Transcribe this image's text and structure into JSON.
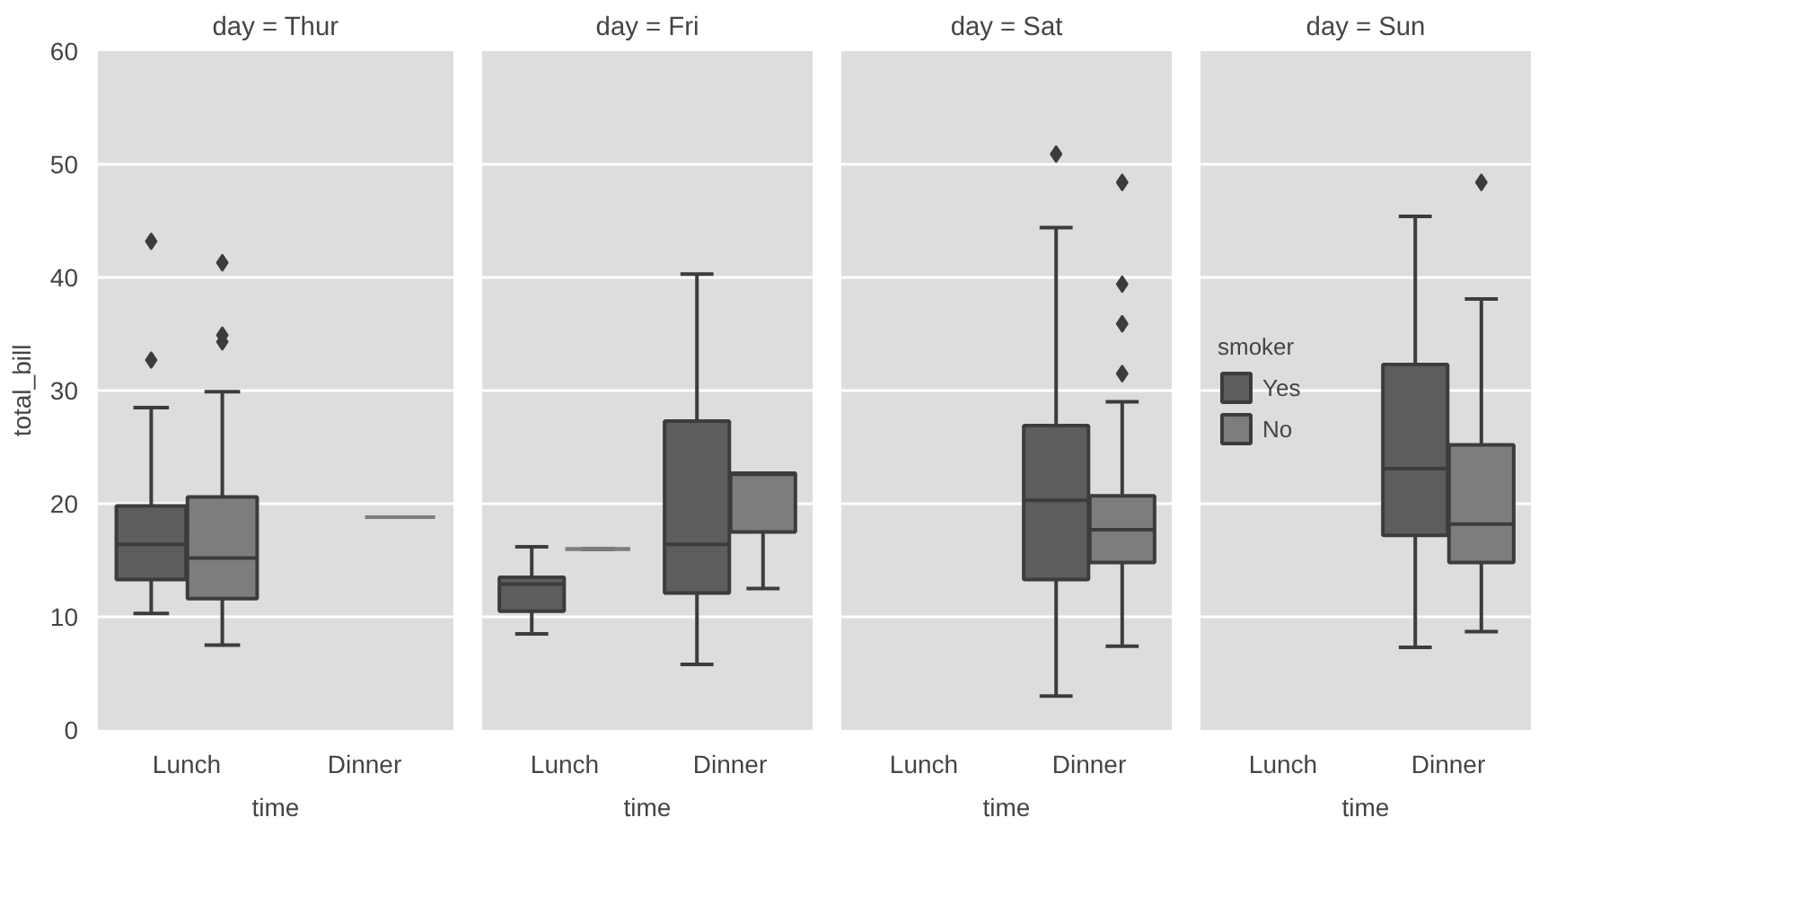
{
  "chart_data": [
    {
      "type": "box",
      "title": "day = Thur",
      "xlabel": "time",
      "ylabel": "total_bill",
      "categories": [
        "Lunch",
        "Dinner"
      ],
      "ylim": [
        0,
        60
      ],
      "yticks": [
        0,
        10,
        20,
        30,
        40,
        50,
        60
      ],
      "grid": "y",
      "legend": false,
      "series": [
        {
          "color": "#5d5d5d",
          "boxes": [
            {
              "low": 10.3,
              "q1": 13.3,
              "median": 16.4,
              "q3": 19.8,
              "high": 28.5,
              "outliers": [
                32.7,
                43.2
              ]
            },
            null
          ]
        },
        {
          "color": "#7d7d7d",
          "boxes": [
            {
              "low": 7.5,
              "q1": 11.6,
              "median": 15.2,
              "q3": 20.6,
              "high": 29.9,
              "outliers": [
                34.3,
                34.9,
                41.3
              ]
            },
            {
              "low": 18.8,
              "q1": 18.8,
              "median": 18.8,
              "q3": 18.8,
              "high": 18.8
            }
          ]
        }
      ]
    },
    {
      "type": "box",
      "title": "day = Fri",
      "xlabel": "time",
      "categories": [
        "Lunch",
        "Dinner"
      ],
      "ylim": [
        0,
        60
      ],
      "yticks": [
        0,
        10,
        20,
        30,
        40,
        50,
        60
      ],
      "grid": "y",
      "legend": false,
      "tick_labels": "x",
      "series": [
        {
          "color": "#5d5d5d",
          "boxes": [
            {
              "low": 8.5,
              "q1": 10.5,
              "median": 12.9,
              "q3": 13.5,
              "high": 16.2
            },
            {
              "low": 5.8,
              "q1": 12.1,
              "median": 16.4,
              "q3": 27.3,
              "high": 40.3
            }
          ]
        },
        {
          "color": "#7d7d7d",
          "boxes": [
            {
              "low": 16.0,
              "q1": 16.0,
              "median": 16.0,
              "q3": 16.0,
              "high": 16.0
            },
            {
              "low": 12.5,
              "q1": 17.5,
              "median": 22.6,
              "q3": 22.7,
              "high": 22.7
            }
          ]
        }
      ]
    },
    {
      "type": "box",
      "title": "day = Sat",
      "xlabel": "time",
      "categories": [
        "Lunch",
        "Dinner"
      ],
      "ylim": [
        0,
        60
      ],
      "yticks": [
        0,
        10,
        20,
        30,
        40,
        50,
        60
      ],
      "grid": "y",
      "legend": false,
      "tick_labels": "x",
      "series": [
        {
          "color": "#5d5d5d",
          "boxes": [
            null,
            {
              "low": 3.0,
              "q1": 13.3,
              "median": 20.3,
              "q3": 26.9,
              "high": 44.4,
              "outliers": [
                50.9
              ]
            }
          ]
        },
        {
          "color": "#7d7d7d",
          "boxes": [
            null,
            {
              "low": 7.4,
              "q1": 14.8,
              "median": 17.7,
              "q3": 20.7,
              "high": 29.0,
              "outliers": [
                31.5,
                35.9,
                39.4,
                48.4
              ]
            }
          ]
        }
      ]
    },
    {
      "type": "box",
      "title": "day = Sun",
      "xlabel": "time",
      "categories": [
        "Lunch",
        "Dinner"
      ],
      "ylim": [
        0,
        60
      ],
      "yticks": [
        0,
        10,
        20,
        30,
        40,
        50,
        60
      ],
      "grid": "y",
      "legend": "left",
      "legend_title": "smoker",
      "tick_labels": "x",
      "series": [
        {
          "name": "Yes",
          "color": "#5d5d5d",
          "boxes": [
            null,
            {
              "low": 7.3,
              "q1": 17.2,
              "median": 23.1,
              "q3": 32.3,
              "high": 45.4
            }
          ]
        },
        {
          "name": "No",
          "color": "#7d7d7d",
          "boxes": [
            null,
            {
              "low": 8.7,
              "q1": 14.8,
              "median": 18.2,
              "q3": 25.2,
              "high": 38.1,
              "outliers": [
                48.4
              ]
            }
          ]
        }
      ]
    }
  ]
}
